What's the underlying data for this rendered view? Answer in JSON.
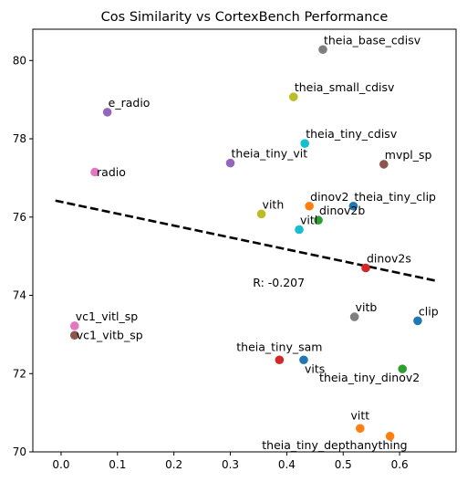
{
  "chart_data": {
    "type": "scatter",
    "title": "Cos Similarity vs CortexBench Performance",
    "xlabel": "",
    "ylabel": "",
    "xlim": [
      -0.05,
      0.7
    ],
    "ylim": [
      70.0,
      80.8
    ],
    "xticks": [
      0.0,
      0.1,
      0.2,
      0.3,
      0.4,
      0.5,
      0.6
    ],
    "xtick_labels": [
      "0.0",
      "0.1",
      "0.2",
      "0.3",
      "0.4",
      "0.5",
      "0.6"
    ],
    "yticks": [
      70,
      72,
      74,
      76,
      78,
      80
    ],
    "ytick_labels": [
      "70",
      "72",
      "74",
      "76",
      "78",
      "80"
    ],
    "grid": false,
    "points": [
      {
        "label": "theia_base_cdisv",
        "x": 0.464,
        "y": 80.28,
        "color": "#7f7f7f",
        "label_pos": "upper-right"
      },
      {
        "label": "theia_small_cdisv",
        "x": 0.412,
        "y": 79.07,
        "color": "#bcbd22",
        "label_pos": "upper-right"
      },
      {
        "label": "e_radio",
        "x": 0.082,
        "y": 78.68,
        "color": "#9467bd",
        "label_pos": "upper-right"
      },
      {
        "label": "theia_tiny_cdisv",
        "x": 0.432,
        "y": 77.88,
        "color": "#17becf",
        "label_pos": "upper-right"
      },
      {
        "label": "theia_tiny_vit",
        "x": 0.3,
        "y": 77.38,
        "color": "#9467bd",
        "label_pos": "upper-right"
      },
      {
        "label": "mvpl_sp",
        "x": 0.572,
        "y": 77.35,
        "color": "#8c564b",
        "label_pos": "upper-right"
      },
      {
        "label": "radio",
        "x": 0.06,
        "y": 77.15,
        "color": "#e377c2",
        "label_pos": "right"
      },
      {
        "label": "dinov2",
        "x": 0.44,
        "y": 76.28,
        "color": "#ff7f0e",
        "label_pos": "upper-right"
      },
      {
        "label": "theia_tiny_clip",
        "x": 0.518,
        "y": 76.28,
        "color": "#1f77b4",
        "label_pos": "upper-right"
      },
      {
        "label": "vith",
        "x": 0.355,
        "y": 76.08,
        "color": "#bcbd22",
        "label_pos": "upper-right"
      },
      {
        "label": "dinov2b",
        "x": 0.456,
        "y": 75.92,
        "color": "#2ca02c",
        "label_pos": "upper-right"
      },
      {
        "label": "vitl",
        "x": 0.422,
        "y": 75.68,
        "color": "#17becf",
        "label_pos": "upper-right"
      },
      {
        "label": "dinov2s",
        "x": 0.54,
        "y": 74.7,
        "color": "#d62728",
        "label_pos": "upper-right"
      },
      {
        "label": "vitb",
        "x": 0.52,
        "y": 73.45,
        "color": "#7f7f7f",
        "label_pos": "upper-right"
      },
      {
        "label": "clip",
        "x": 0.632,
        "y": 73.35,
        "color": "#1f77b4",
        "label_pos": "upper-right"
      },
      {
        "label": "vc1_vitl_sp",
        "x": 0.024,
        "y": 73.22,
        "color": "#e377c2",
        "label_pos": "upper-right"
      },
      {
        "label": "vc1_vitb_sp",
        "x": 0.024,
        "y": 72.98,
        "color": "#8c564b",
        "label_pos": "right"
      },
      {
        "label": "theia_tiny_sam",
        "x": 0.387,
        "y": 72.35,
        "color": "#d62728",
        "label_pos": "upper-center"
      },
      {
        "label": "vits",
        "x": 0.43,
        "y": 72.35,
        "color": "#1f77b4",
        "label_pos": "lower-right"
      },
      {
        "label": "theia_tiny_dinov2",
        "x": 0.605,
        "y": 72.12,
        "color": "#2ca02c",
        "label_pos": "lower-left"
      },
      {
        "label": "vitt",
        "x": 0.53,
        "y": 70.6,
        "color": "#ff7f0e",
        "label_pos": "upper-center"
      },
      {
        "label": "theia_tiny_depthanything",
        "x": 0.583,
        "y": 70.4,
        "color": "#ff7f0e",
        "label_pos": "lower-left"
      }
    ],
    "trendline": {
      "x": [
        -0.01,
        0.665
      ],
      "y": [
        76.42,
        74.37
      ],
      "color": "#000000",
      "style": "dashed"
    },
    "annotation": {
      "text": "R: -0.207",
      "x": 0.34,
      "y": 74.22
    }
  }
}
